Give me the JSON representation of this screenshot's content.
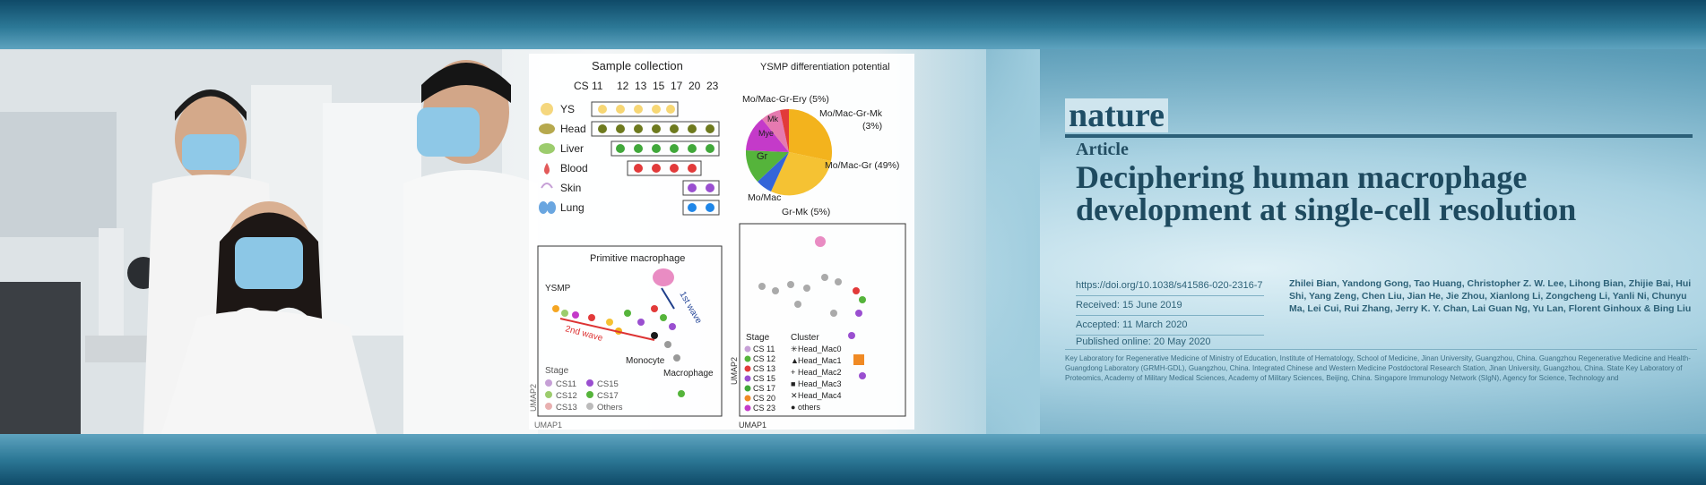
{
  "figure": {
    "sample_collection_title": "Sample collection",
    "ysmp_title": "YSMP differentiation potential",
    "cs_header": [
      "CS 11",
      "12",
      "13",
      "15",
      "17",
      "20",
      "23"
    ],
    "tissues": [
      "YS",
      "Head",
      "Liver",
      "Blood",
      "Skin",
      "Lung"
    ],
    "pie_labels": [
      "Mo/Mac-Gr-Ery (5%)",
      "Mo/Mac-Gr-Mk",
      "(3%)",
      "Mo/Mac-Gr (49%)",
      "Mo/Mac",
      "Gr-Mk (5%)",
      "Gr",
      "Mye",
      "Mk"
    ],
    "umap_left_labels": [
      "Primitive macrophage",
      "YSMP",
      "1st wave",
      "2nd wave",
      "Monocyte",
      "Macrophage"
    ],
    "left_legend_title": "Stage",
    "left_legend": [
      "CS11",
      "CS15",
      "CS12",
      "CS17",
      "CS13",
      "Others"
    ],
    "right_stage_title": "Stage",
    "right_stage": [
      "CS 11",
      "CS 12",
      "CS 13",
      "CS 15",
      "CS 17",
      "CS 20",
      "CS 23"
    ],
    "right_cluster_title": "Cluster",
    "right_cluster": [
      "Head_Mac0",
      "Head_Mac1",
      "Head_Mac2",
      "Head_Mac3",
      "Head_Mac4",
      "others"
    ],
    "axis_x": "UMAP1",
    "axis_y": "UMAP2",
    "colors": {
      "ys": "#f7d774",
      "head": "#6e7a1e",
      "liver": "#41a83a",
      "blood": "#e23a3a",
      "skin": "#9a4fd0",
      "lung": "#1f86e8"
    }
  },
  "article": {
    "journal": "nature",
    "type": "Article",
    "title": "Deciphering human macrophage development at single-cell resolution",
    "doi": "https://doi.org/10.1038/s41586-020-2316-7",
    "received": "Received: 15 June 2019",
    "accepted": "Accepted: 11 March 2020",
    "published": "Published online: 20 May 2020",
    "authors": "Zhilei Bian, Yandong Gong, Tao Huang, Christopher Z. W. Lee, Lihong Bian, Zhijie Bai, Hui Shi, Yang Zeng, Chen Liu, Jian He, Jie Zhou, Xianlong Li, Zongcheng Li, Yanli Ni, Chunyu Ma, Lei Cui, Rui Zhang, Jerry K. Y. Chan, Lai Guan Ng, Yu Lan, Florent Ginhoux & Bing Liu",
    "affiliations": "Key Laboratory for Regenerative Medicine of Ministry of Education, Institute of Hematology, School of Medicine, Jinan University, Guangzhou, China. Guangzhou Regenerative Medicine and Health-Guangdong Laboratory (GRMH-GDL), Guangzhou, China. Integrated Chinese and Western Medicine Postdoctoral Research Station, Jinan University, Guangzhou, China. State Key Laboratory of Proteomics, Academy of Military Medical Sciences, Academy of Military Sciences, Beijing, China. Singapore Immunology Network (SIgN), Agency for Science, Technology and"
  }
}
